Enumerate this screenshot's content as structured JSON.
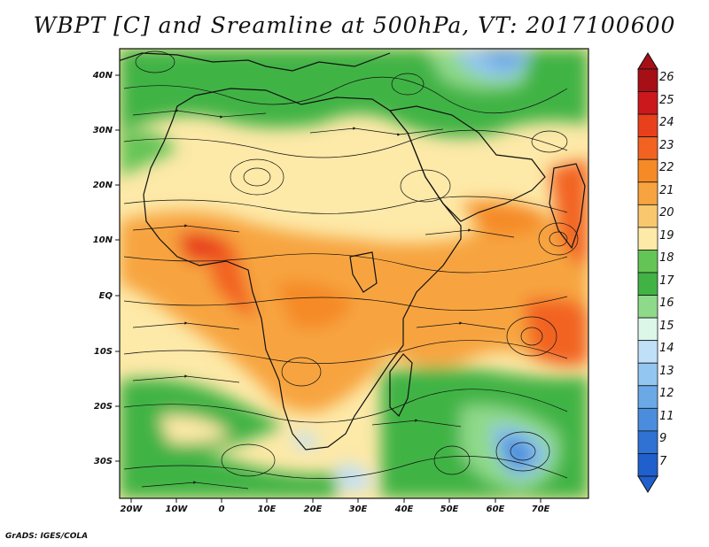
{
  "title": "WBPT [C] and Sreamline at 500hPa, VT: 2017100600",
  "credit": "GrADS: IGES/COLA",
  "map": {
    "region": "Africa, Arabia and western Indian Ocean",
    "field": "wet-bulb potential temperature shading with streamlines",
    "lon_range": [
      -23,
      80
    ],
    "lat_range": [
      -36,
      45
    ],
    "lat_labels": [
      "40N",
      "30N",
      "20N",
      "10N",
      "EQ",
      "10S",
      "20S",
      "30S"
    ],
    "lon_labels": [
      "20W",
      "10W",
      "0",
      "10E",
      "20E",
      "30E",
      "40E",
      "50E",
      "60E",
      "70E"
    ]
  },
  "colorbar": {
    "labels": [
      "26",
      "25",
      "24",
      "23",
      "22",
      "21",
      "20",
      "19",
      "18",
      "17",
      "16",
      "15",
      "14",
      "13",
      "12",
      "11",
      "9",
      "7"
    ],
    "colors": [
      "#a50f15",
      "#cb181d",
      "#e8401c",
      "#f26322",
      "#f58a27",
      "#f7a440",
      "#f9c76e",
      "#fde9a8",
      "#65c456",
      "#41b345",
      "#8fd98a",
      "#dcf7e8",
      "#bfe0f7",
      "#93c6f0",
      "#6ba9e6",
      "#4a8ddd",
      "#2f72d4",
      "#2060cc"
    ]
  }
}
